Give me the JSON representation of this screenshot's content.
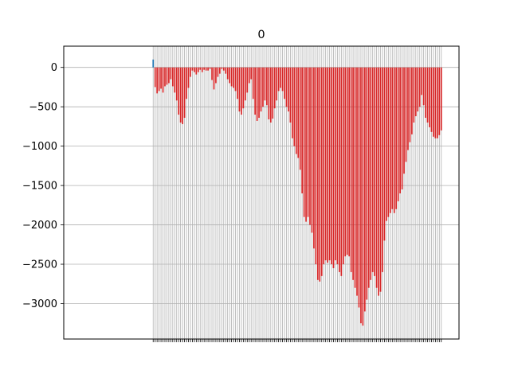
{
  "chart_data": {
    "type": "bar",
    "title": "0",
    "xlabel": "",
    "ylabel": "",
    "grid": true,
    "ylim": [
      -3450,
      270
    ],
    "yticks": [
      0,
      -500,
      -1000,
      -1500,
      -2000,
      -2500,
      -3000
    ],
    "ytick_labels": [
      "0",
      "−500",
      "−1000",
      "−1500",
      "−2000",
      "−2500",
      "−3000"
    ],
    "colors": {
      "positive": "#1f77b4",
      "negative": "#d62728",
      "grid": "#b0b0b0"
    },
    "values": [
      100,
      -250,
      -330,
      -300,
      -270,
      -320,
      -240,
      -220,
      -200,
      -150,
      -240,
      -320,
      -420,
      -600,
      -700,
      -720,
      -640,
      -400,
      -260,
      -120,
      -40,
      -60,
      -90,
      -60,
      -30,
      -60,
      -30,
      -40,
      -40,
      -20,
      -160,
      -280,
      -200,
      -120,
      -80,
      -20,
      -40,
      -80,
      -150,
      -200,
      -240,
      -260,
      -300,
      -400,
      -560,
      -600,
      -520,
      -420,
      -320,
      -200,
      -150,
      -400,
      -600,
      -680,
      -640,
      -560,
      -500,
      -420,
      -480,
      -660,
      -700,
      -650,
      -520,
      -420,
      -300,
      -260,
      -300,
      -400,
      -500,
      -560,
      -700,
      -900,
      -1000,
      -1100,
      -1150,
      -1300,
      -1600,
      -1900,
      -1960,
      -1900,
      -2000,
      -2100,
      -2300,
      -2500,
      -2700,
      -2720,
      -2650,
      -2500,
      -2450,
      -2480,
      -2450,
      -2500,
      -2550,
      -2450,
      -2500,
      -2600,
      -2650,
      -2500,
      -2400,
      -2380,
      -2400,
      -2600,
      -2700,
      -2800,
      -2900,
      -3050,
      -3250,
      -3280,
      -3100,
      -2950,
      -2800,
      -2700,
      -2600,
      -2650,
      -2800,
      -2900,
      -2850,
      -2600,
      -2200,
      -1950,
      -1900,
      -1850,
      -1800,
      -1850,
      -1800,
      -1700,
      -1600,
      -1550,
      -1350,
      -1200,
      -1050,
      -950,
      -850,
      -700,
      -620,
      -560,
      -500,
      -350,
      -480,
      -640,
      -700,
      -760,
      -820,
      -880,
      -900,
      -900,
      -860,
      -800
    ]
  }
}
